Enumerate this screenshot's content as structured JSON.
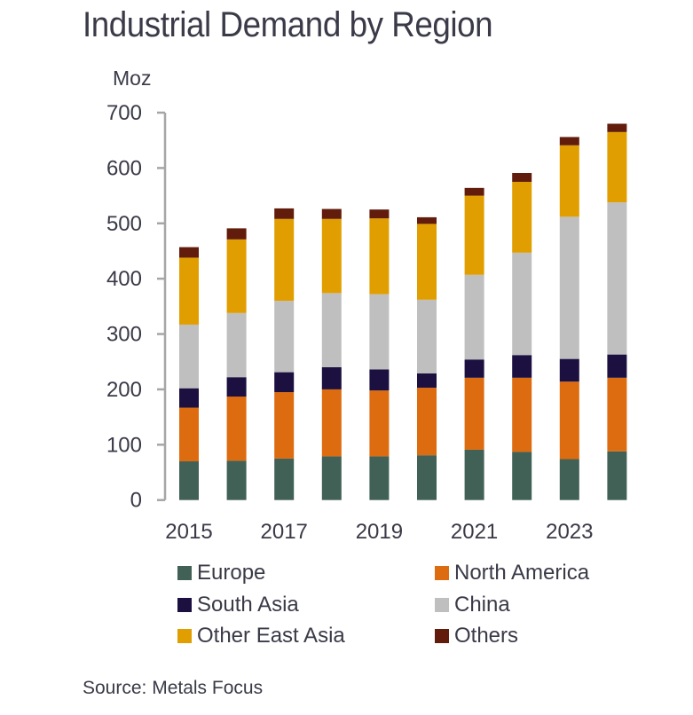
{
  "chart_data": {
    "type": "bar",
    "stacked": true,
    "title": "Industrial Demand by Region",
    "ylabel": "Moz",
    "xlabel": "",
    "ylim": [
      0,
      700
    ],
    "yticks": [
      0,
      100,
      200,
      300,
      400,
      500,
      600,
      700
    ],
    "categories": [
      "2015",
      "2016",
      "2017",
      "2018",
      "2019",
      "2020",
      "2021",
      "2022",
      "2023",
      "2024"
    ],
    "xtick_labels": [
      "2015",
      "",
      "2017",
      "",
      "2019",
      "",
      "2021",
      "",
      "2023",
      ""
    ],
    "grid": false,
    "legend_position": "bottom",
    "series": [
      {
        "name": "Europe",
        "color": "#416156",
        "values": [
          70,
          71,
          75,
          79,
          79,
          81,
          91,
          87,
          74,
          88
        ]
      },
      {
        "name": "North America",
        "color": "#dd6b10",
        "values": [
          97,
          116,
          120,
          121,
          119,
          122,
          130,
          134,
          140,
          133
        ]
      },
      {
        "name": "South Asia",
        "color": "#1b1040",
        "values": [
          35,
          35,
          36,
          40,
          38,
          26,
          33,
          41,
          41,
          42
        ]
      },
      {
        "name": "China",
        "color": "#bfbfbf",
        "values": [
          115,
          116,
          129,
          134,
          136,
          133,
          153,
          185,
          257,
          275
        ]
      },
      {
        "name": "Other East Asia",
        "color": "#e19e00",
        "values": [
          121,
          133,
          148,
          134,
          137,
          137,
          143,
          128,
          129,
          127
        ]
      },
      {
        "name": "Others",
        "color": "#611c0c",
        "values": [
          19,
          20,
          19,
          18,
          16,
          12,
          14,
          16,
          15,
          15
        ]
      }
    ]
  },
  "header": {
    "title": "Industrial Demand by Region",
    "unit": "Moz"
  },
  "legend": {
    "items": [
      {
        "label": "Europe",
        "color": "#416156"
      },
      {
        "label": "North America",
        "color": "#dd6b10"
      },
      {
        "label": "South Asia",
        "color": "#1b1040"
      },
      {
        "label": "China",
        "color": "#bfbfbf"
      },
      {
        "label": "Other East Asia",
        "color": "#e19e00"
      },
      {
        "label": "Others",
        "color": "#611c0c"
      }
    ]
  },
  "footer": {
    "source": "Source: Metals Focus"
  }
}
